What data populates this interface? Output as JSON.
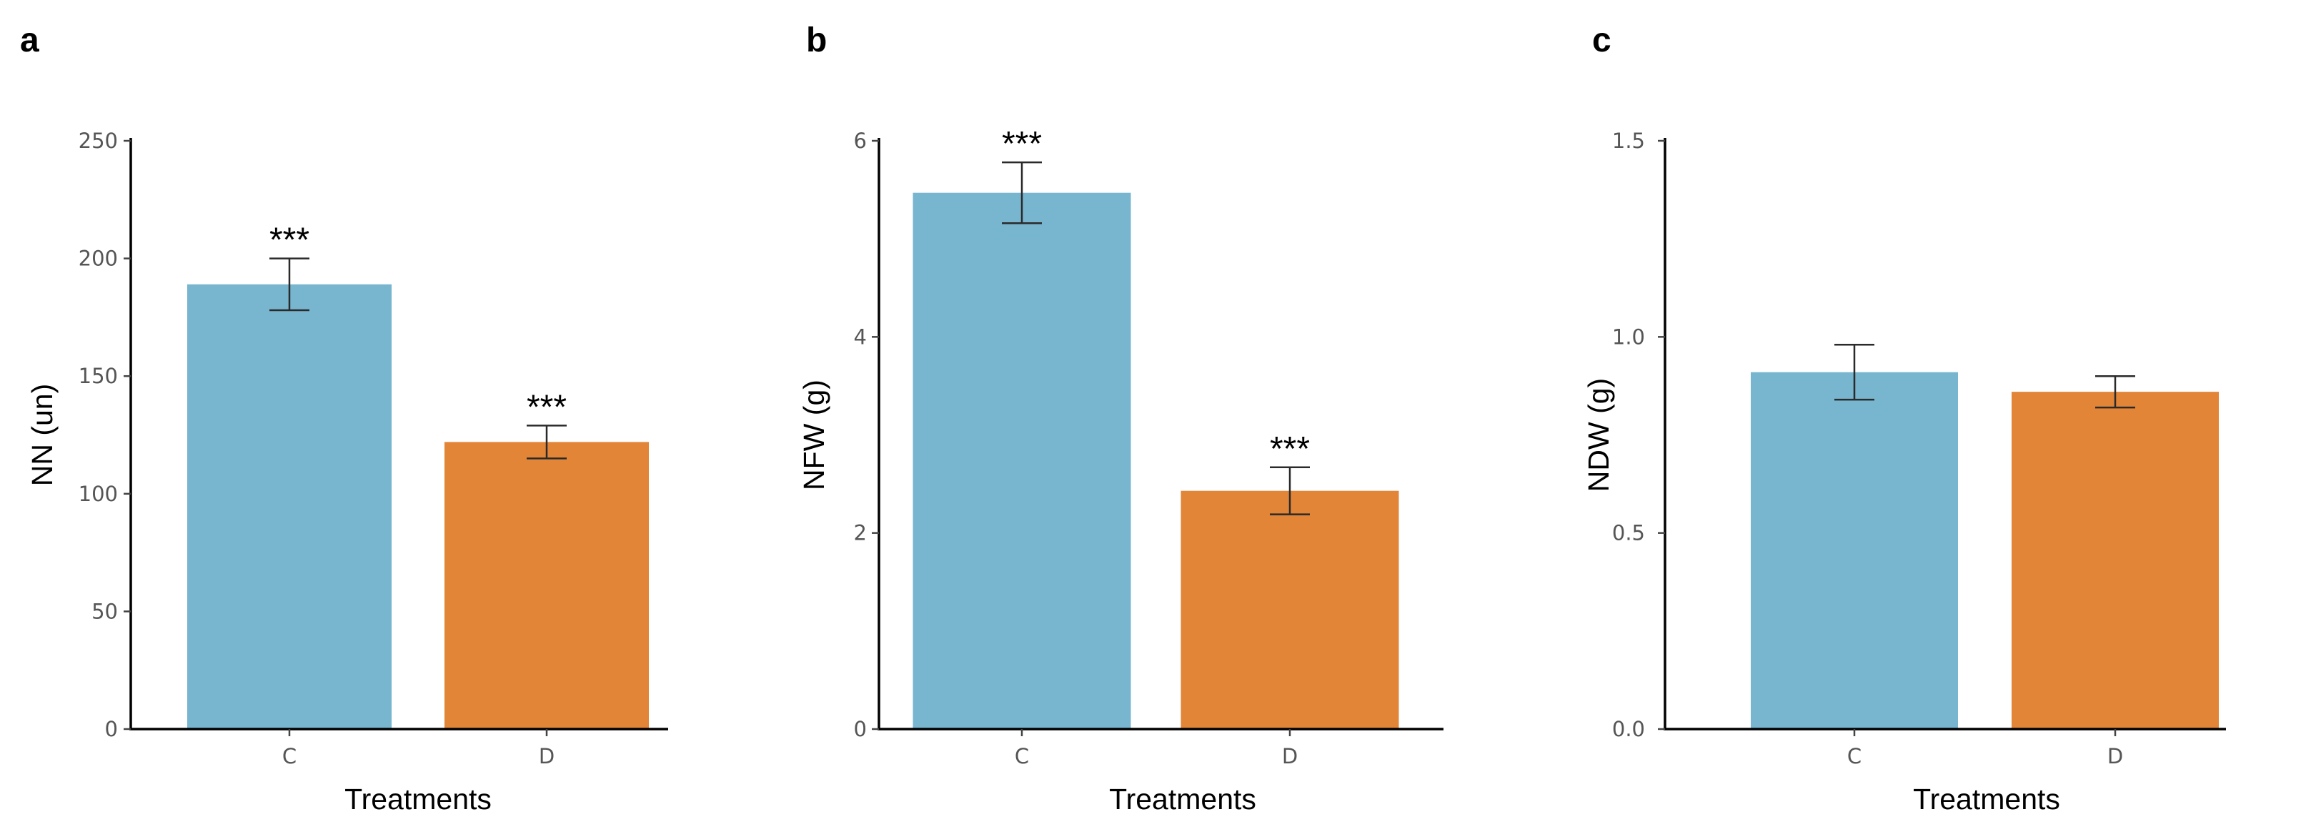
{
  "chart_data": [
    {
      "type": "bar",
      "panel_label": "a",
      "categories": [
        "C",
        "D"
      ],
      "values": [
        189,
        122
      ],
      "error": [
        11,
        7
      ],
      "significance": [
        "***",
        "***"
      ],
      "colors": [
        "#78B5CF",
        "#E28537"
      ],
      "xlabel": "Treatments",
      "ylabel": "NN (un)",
      "ylim": [
        0,
        250
      ],
      "yticks": [
        0,
        50,
        100,
        150,
        200,
        250
      ],
      "ytick_labels": [
        "0",
        "50",
        "100",
        "150",
        "200",
        "250"
      ]
    },
    {
      "type": "bar",
      "panel_label": "b",
      "categories": [
        "C",
        "D"
      ],
      "values": [
        5.47,
        2.43
      ],
      "error": [
        0.31,
        0.24
      ],
      "significance": [
        "***",
        "***"
      ],
      "colors": [
        "#78B5CF",
        "#E28537"
      ],
      "xlabel": "Treatments",
      "ylabel": "NFW  (g)",
      "ylim": [
        0,
        6
      ],
      "yticks": [
        0,
        2,
        4,
        6
      ],
      "ytick_labels": [
        "0",
        "2",
        "4",
        "6"
      ]
    },
    {
      "type": "bar",
      "panel_label": "c",
      "categories": [
        "C",
        "D"
      ],
      "values": [
        0.91,
        0.86
      ],
      "error": [
        0.07,
        0.04
      ],
      "significance": [
        "",
        ""
      ],
      "colors": [
        "#78B5CF",
        "#E28537"
      ],
      "xlabel": "Treatments",
      "ylabel": "NDW  (g)",
      "ylim": [
        0,
        1.5
      ],
      "yticks": [
        0,
        0.5,
        1.0,
        1.5
      ],
      "ytick_labels": [
        "0.0",
        "0.5",
        "1.0",
        "1.5"
      ]
    }
  ]
}
